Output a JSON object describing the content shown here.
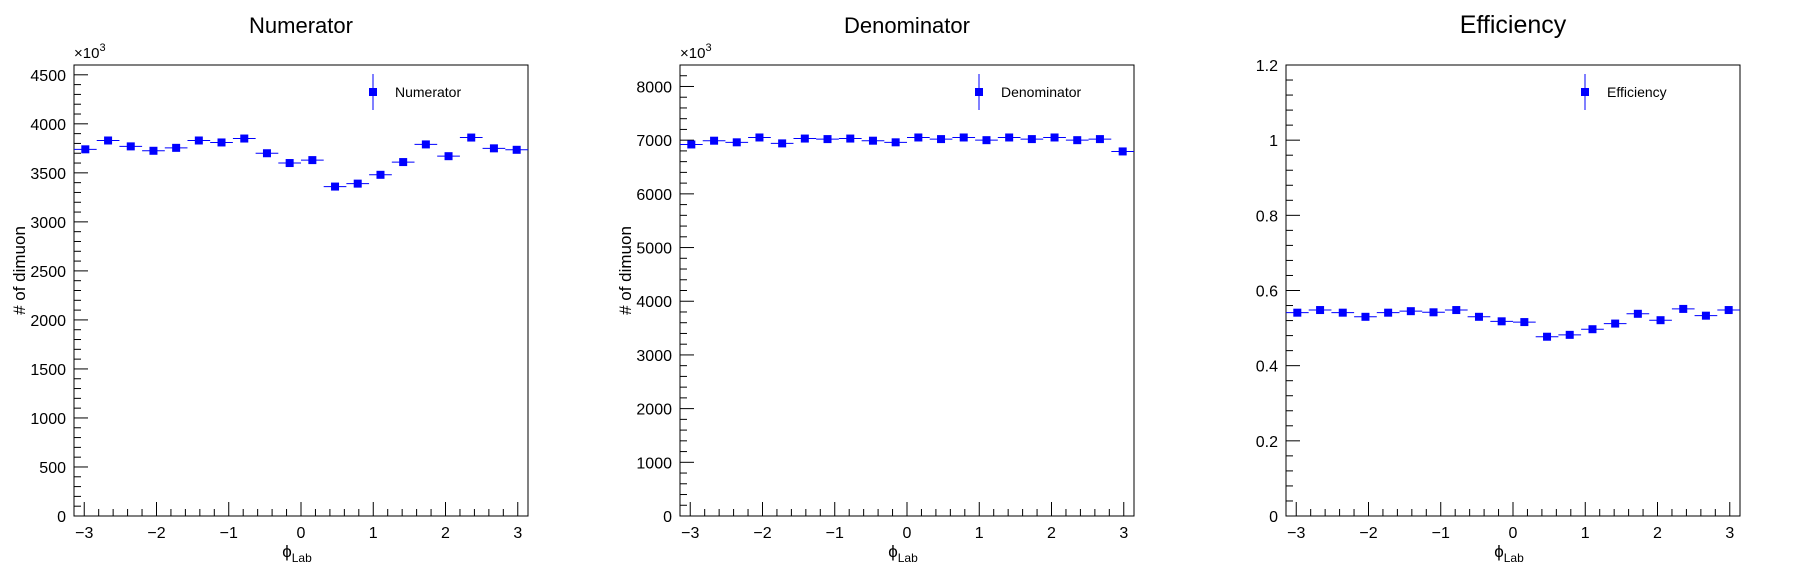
{
  "colors": {
    "marker": "#0000ff",
    "axis": "#000000",
    "background": "#ffffff"
  },
  "chart_data": [
    {
      "type": "scatter",
      "title": "Numerator",
      "xlabel": "ϕ",
      "xlabel_sub": "Lab",
      "ylabel": "# of dimuon",
      "ylim": [
        0,
        4600
      ],
      "xlim": [
        -3.1416,
        3.1416
      ],
      "multiplier": "×10",
      "multiplier_exp": "3",
      "y_ticks": [
        0,
        500,
        1000,
        1500,
        2000,
        2500,
        3000,
        3500,
        4000,
        4500
      ],
      "x_ticks": [
        -3,
        -2,
        -1,
        0,
        1,
        2,
        3
      ],
      "x_tick_labels": [
        "−3",
        "−2",
        "−1",
        "0",
        "1",
        "2",
        "3"
      ],
      "grid": false,
      "legend_position": "top-right",
      "series": [
        {
          "name": "Numerator",
          "x": [
            -2.985,
            -2.67,
            -2.356,
            -2.042,
            -1.728,
            -1.414,
            -1.1,
            -0.785,
            -0.471,
            -0.157,
            0.157,
            0.471,
            0.785,
            1.1,
            1.414,
            1.728,
            2.042,
            2.356,
            2.67,
            2.985
          ],
          "y": [
            3740,
            3830,
            3770,
            3725,
            3755,
            3830,
            3810,
            3850,
            3700,
            3600,
            3630,
            3360,
            3390,
            3480,
            3610,
            3790,
            3670,
            3860,
            3750,
            3735
          ]
        }
      ]
    },
    {
      "type": "scatter",
      "title": "Denominator",
      "xlabel": "ϕ",
      "xlabel_sub": "Lab",
      "ylabel": "# of dimuon",
      "ylim": [
        0,
        8400
      ],
      "xlim": [
        -3.1416,
        3.1416
      ],
      "multiplier": "×10",
      "multiplier_exp": "3",
      "y_ticks": [
        0,
        1000,
        2000,
        3000,
        4000,
        5000,
        6000,
        7000,
        8000
      ],
      "x_ticks": [
        -3,
        -2,
        -1,
        0,
        1,
        2,
        3
      ],
      "x_tick_labels": [
        "−3",
        "−2",
        "−1",
        "0",
        "1",
        "2",
        "3"
      ],
      "grid": false,
      "legend_position": "top-right",
      "series": [
        {
          "name": "Denominator",
          "x": [
            -2.985,
            -2.67,
            -2.356,
            -2.042,
            -1.728,
            -1.414,
            -1.1,
            -0.785,
            -0.471,
            -0.157,
            0.157,
            0.471,
            0.785,
            1.1,
            1.414,
            1.728,
            2.042,
            2.356,
            2.67,
            2.985
          ],
          "y": [
            6920,
            6990,
            6960,
            7050,
            6940,
            7030,
            7020,
            7030,
            6990,
            6960,
            7050,
            7020,
            7050,
            7000,
            7050,
            7020,
            7050,
            7000,
            7020,
            6790
          ]
        }
      ]
    },
    {
      "type": "scatter",
      "title": "Efficiency",
      "xlabel": "ϕ",
      "xlabel_sub": "Lab",
      "ylabel": "",
      "ylim": [
        0,
        1.2
      ],
      "xlim": [
        -3.1416,
        3.1416
      ],
      "multiplier": "",
      "multiplier_exp": "",
      "y_ticks": [
        0,
        0.2,
        0.4,
        0.6,
        0.8,
        1.0,
        1.2
      ],
      "y_tick_labels": [
        "0",
        "0.2",
        "0.4",
        "0.6",
        "0.8",
        "1",
        "1.2"
      ],
      "x_ticks": [
        -3,
        -2,
        -1,
        0,
        1,
        2,
        3
      ],
      "x_tick_labels": [
        "−3",
        "−2",
        "−1",
        "0",
        "1",
        "2",
        "3"
      ],
      "grid": false,
      "legend_position": "top-right",
      "series": [
        {
          "name": "Efficiency",
          "x": [
            -2.985,
            -2.67,
            -2.356,
            -2.042,
            -1.728,
            -1.414,
            -1.1,
            -0.785,
            -0.471,
            -0.157,
            0.157,
            0.471,
            0.785,
            1.1,
            1.414,
            1.728,
            2.042,
            2.356,
            2.67,
            2.985
          ],
          "y": [
            0.541,
            0.548,
            0.541,
            0.53,
            0.541,
            0.545,
            0.542,
            0.548,
            0.53,
            0.518,
            0.516,
            0.477,
            0.482,
            0.497,
            0.512,
            0.538,
            0.521,
            0.551,
            0.533,
            0.548
          ]
        }
      ]
    }
  ]
}
